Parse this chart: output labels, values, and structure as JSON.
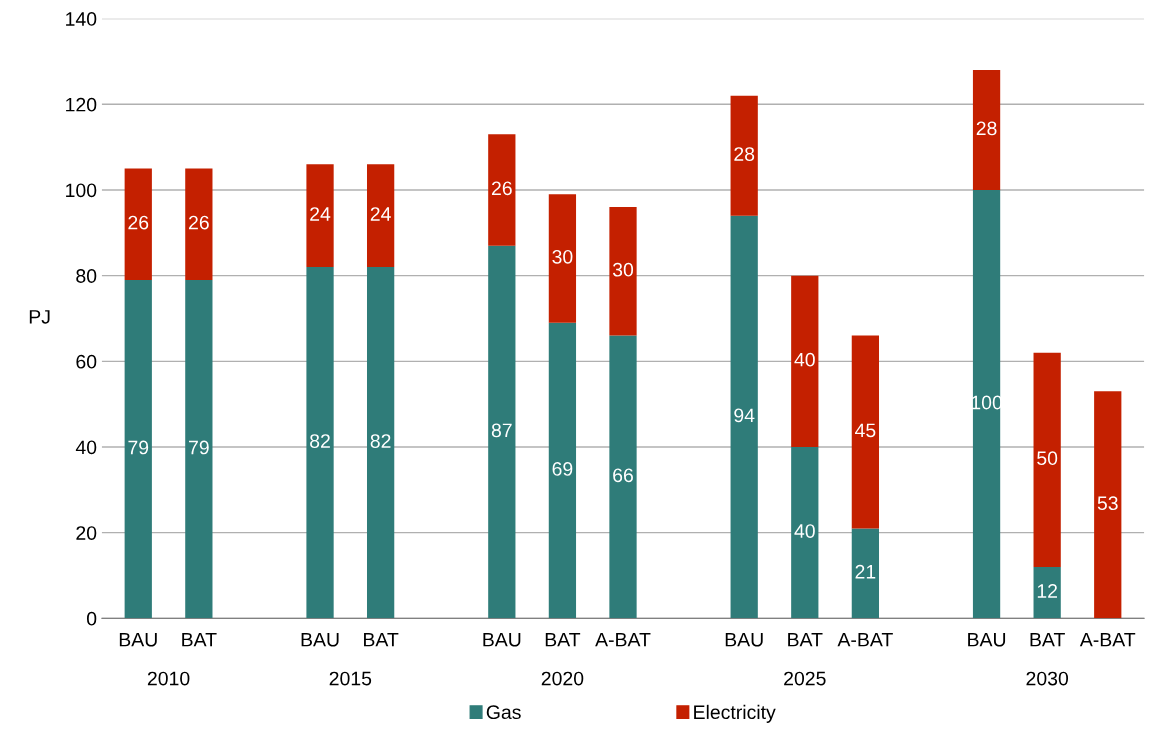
{
  "chart_data": {
    "type": "bar",
    "stacked": true,
    "ylabel": "PJ",
    "categories": [
      "BAU",
      "BAT",
      null,
      "BAU",
      "BAT",
      null,
      "BAU",
      "BAT",
      "A-BAT",
      null,
      "BAU",
      "BAT",
      "A-BAT",
      null,
      "BAU",
      "BAT",
      "A-BAT"
    ],
    "series": [
      {
        "name": "Gas",
        "color": "#2f7c79",
        "values": [
          79,
          79,
          null,
          82,
          82,
          null,
          87,
          69,
          66,
          null,
          94,
          40,
          21,
          null,
          100,
          12,
          0
        ],
        "value_labels": [
          "79",
          "79",
          null,
          "82",
          "82",
          null,
          "87",
          "69",
          "66",
          null,
          "94",
          "40",
          "21",
          null,
          "100",
          "12",
          null
        ]
      },
      {
        "name": "Electricity",
        "color": "#c42000",
        "values": [
          26,
          26,
          null,
          24,
          24,
          null,
          26,
          30,
          30,
          null,
          28,
          40,
          45,
          null,
          28,
          50,
          53
        ],
        "value_labels": [
          "26",
          "26",
          null,
          "24",
          "24",
          null,
          "26",
          "30",
          "30",
          null,
          "28",
          "40",
          "45",
          null,
          "28",
          "50",
          "53"
        ]
      }
    ],
    "annotations": [
      "2010",
      "2015",
      "2020",
      "2025",
      "2030"
    ],
    "ylim": [
      0,
      140
    ],
    "yticks": [
      0,
      20,
      40,
      60,
      80,
      100,
      120,
      140
    ],
    "grid": "y",
    "legend": "bottom"
  }
}
